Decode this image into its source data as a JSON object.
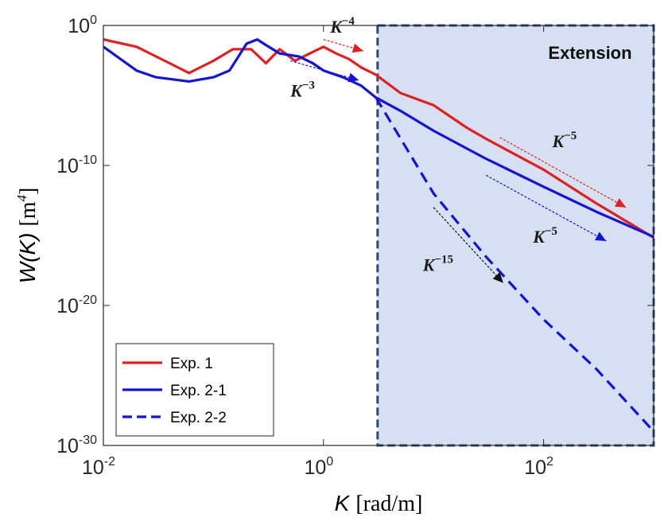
{
  "chart_data": {
    "type": "line",
    "x_scale": "log",
    "y_scale": "log",
    "xlim": [
      0.01,
      1000
    ],
    "ylim": [
      1e-30,
      1
    ],
    "x_ticks": [
      {
        "value": 0.01,
        "base": "10",
        "exp": "-2"
      },
      {
        "value": 1,
        "base": "10",
        "exp": "0"
      },
      {
        "value": 100,
        "base": "10",
        "exp": "2"
      }
    ],
    "y_ticks": [
      {
        "value": 1,
        "base": "10",
        "exp": "0"
      },
      {
        "value": 1e-10,
        "base": "10",
        "exp": "-10"
      },
      {
        "value": 1e-20,
        "base": "10",
        "exp": "-20"
      },
      {
        "value": 1e-30,
        "base": "10",
        "exp": "-30"
      }
    ],
    "xlabel": {
      "var": "K",
      "unit": "[rad/m]"
    },
    "ylabel": {
      "var": "W(K)",
      "unit": "[m",
      "unit_exp": "4",
      "unit_close": "]"
    },
    "grid": false,
    "legend_position": "bottom-left",
    "shaded_region": {
      "label": "Extension",
      "x_range": [
        3.1,
        1000
      ],
      "color": "#d6e0f2",
      "border_color": "#2f4a78"
    },
    "series": [
      {
        "name": "Exp. 1",
        "color": "#e02020",
        "dash": "solid",
        "points": [
          [
            0.01,
            0.1
          ],
          [
            0.02,
            0.03
          ],
          [
            0.04,
            0.002
          ],
          [
            0.06,
            0.0004
          ],
          [
            0.1,
            0.003
          ],
          [
            0.15,
            0.02
          ],
          [
            0.22,
            0.02
          ],
          [
            0.3,
            0.002
          ],
          [
            0.4,
            0.02
          ],
          [
            0.55,
            0.003
          ],
          [
            0.75,
            0.01
          ],
          [
            1.0,
            0.03
          ],
          [
            1.3,
            0.01
          ],
          [
            1.7,
            0.004
          ],
          [
            2.2,
            0.001
          ],
          [
            3.0,
            0.0003
          ],
          [
            5,
            1.5e-05
          ],
          [
            10,
            2e-06
          ],
          [
            20,
            5e-08
          ],
          [
            30,
            8e-09
          ],
          [
            100,
            5e-11
          ],
          [
            300,
            2e-13
          ],
          [
            1000,
            7e-16
          ]
        ]
      },
      {
        "name": "Exp. 2-1",
        "color": "#1414d2",
        "dash": "solid",
        "points": [
          [
            0.01,
            0.03
          ],
          [
            0.02,
            0.0006
          ],
          [
            0.03,
            0.0002
          ],
          [
            0.06,
            0.0001
          ],
          [
            0.1,
            0.0002
          ],
          [
            0.14,
            0.0006
          ],
          [
            0.2,
            0.05
          ],
          [
            0.25,
            0.1
          ],
          [
            0.3,
            0.04
          ],
          [
            0.4,
            0.01
          ],
          [
            0.6,
            0.006
          ],
          [
            0.8,
            0.002
          ],
          [
            1.0,
            0.0006
          ],
          [
            1.5,
            0.0002
          ],
          [
            2.2,
            5e-05
          ],
          [
            3.0,
            7e-06
          ],
          [
            5,
            8e-07
          ],
          [
            10,
            3e-08
          ],
          [
            30,
            3e-10
          ],
          [
            100,
            3e-12
          ],
          [
            300,
            5e-14
          ],
          [
            1000,
            8e-16
          ]
        ]
      },
      {
        "name": "Exp. 2-2",
        "color": "#1414d2",
        "dash": "dashed",
        "points": [
          [
            3.0,
            7e-06
          ],
          [
            10,
            1e-12
          ],
          [
            30,
            3e-17
          ],
          [
            100,
            1e-21
          ],
          [
            300,
            3e-25
          ],
          [
            1000,
            1e-29
          ]
        ]
      }
    ],
    "annotations": [
      {
        "base": "K",
        "exp": "−4",
        "color": "#e02020",
        "x1": 1.0,
        "y1": 0.1,
        "x2": 2.3,
        "y2": 0.015,
        "label_x": 1.15,
        "label_y": 0.3
      },
      {
        "base": "K",
        "exp": "−3",
        "color": "#1414d2",
        "x1": 0.5,
        "y1": 0.003,
        "x2": 2.1,
        "y2": 0.00012,
        "label_x": 0.5,
        "label_y": 8e-06
      },
      {
        "base": "K",
        "exp": "−5",
        "color": "#e02020",
        "x1": 40,
        "y1": 1e-08,
        "x2": 560,
        "y2": 1e-13,
        "label_x": 120,
        "label_y": 2e-09
      },
      {
        "base": "K",
        "exp": "−5",
        "color": "#1414d2",
        "x1": 30,
        "y1": 2e-11,
        "x2": 370,
        "y2": 4e-16,
        "label_x": 80,
        "label_y": 3e-16
      },
      {
        "base": "K",
        "exp": "−15",
        "color": "#111111",
        "x1": 10,
        "y1": 1e-13,
        "x2": 43,
        "y2": 4e-19,
        "label_x": 8,
        "label_y": 3e-18
      }
    ]
  }
}
